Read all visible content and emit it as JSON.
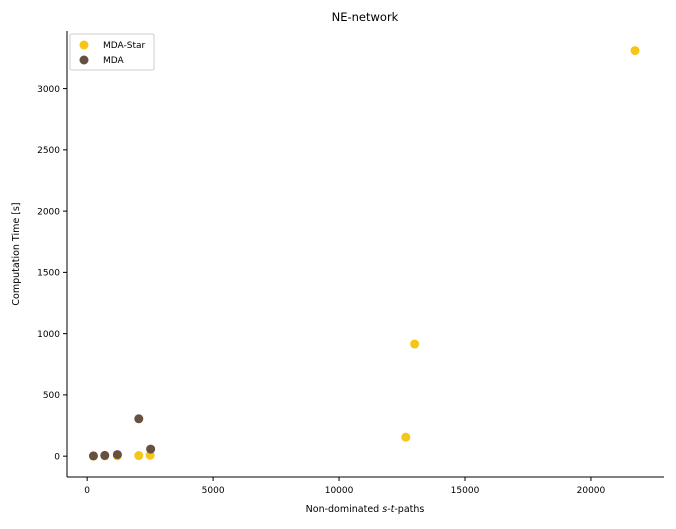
{
  "chart_data": {
    "type": "scatter",
    "title": "NE-network",
    "xlabel": {
      "prefix": "Non-dominated ",
      "s": "s",
      "dash": "-",
      "t": "t",
      "suffix": "-paths"
    },
    "ylabel": "Computation Time [s]",
    "xlim": [
      -800,
      22900
    ],
    "ylim": [
      -170,
      3470
    ],
    "x_ticks": [
      {
        "value": 0,
        "label": "0"
      },
      {
        "value": 5000,
        "label": "5000"
      },
      {
        "value": 10000,
        "label": "10000"
      },
      {
        "value": 15000,
        "label": "15000"
      },
      {
        "value": 20000,
        "label": "20000"
      }
    ],
    "y_ticks": [
      {
        "value": 0,
        "label": "0"
      },
      {
        "value": 500,
        "label": "500"
      },
      {
        "value": 1000,
        "label": "1000"
      },
      {
        "value": 1500,
        "label": "1500"
      },
      {
        "value": 2000,
        "label": "2000"
      },
      {
        "value": 2500,
        "label": "2500"
      },
      {
        "value": 3000,
        "label": "3000"
      }
    ],
    "grid": false,
    "legend_position": "top-left",
    "series": [
      {
        "name": "MDA-Star",
        "color": "#f5c518",
        "points": [
          {
            "x": 250,
            "y": 1
          },
          {
            "x": 700,
            "y": 2
          },
          {
            "x": 1200,
            "y": 3
          },
          {
            "x": 2050,
            "y": 5
          },
          {
            "x": 2500,
            "y": 8
          },
          {
            "x": 12650,
            "y": 155
          },
          {
            "x": 13000,
            "y": 915
          },
          {
            "x": 21750,
            "y": 3310
          }
        ]
      },
      {
        "name": "MDA",
        "color": "#66503f",
        "points": [
          {
            "x": 250,
            "y": 2
          },
          {
            "x": 700,
            "y": 6
          },
          {
            "x": 1200,
            "y": 13
          },
          {
            "x": 2050,
            "y": 305
          },
          {
            "x": 2520,
            "y": 58
          }
        ]
      }
    ]
  }
}
